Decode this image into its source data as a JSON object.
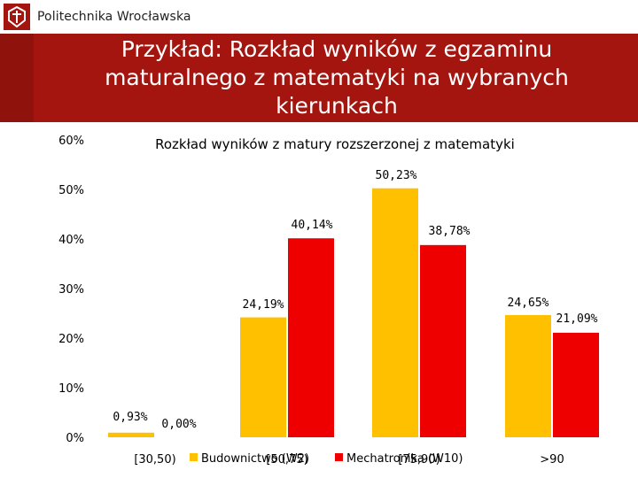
{
  "header": {
    "brand": "Politechnika Wrocławska",
    "slide_title_lines": [
      "Przykład: Rozkład wyników z egzaminu",
      "maturalnego z matematyki na wybranych",
      "kierunkach"
    ]
  },
  "colors": {
    "banner": "#a3150e",
    "series_1": "#ffc000",
    "series_2": "#ee0000"
  },
  "chart_data": {
    "type": "bar",
    "title": "Rozkład wyników z matury rozszerzonej z matematyki",
    "categories": [
      "[30,50)",
      "[50,75)",
      "[75,90)",
      ">90"
    ],
    "series": [
      {
        "name": "Budownictwo (W2)",
        "values": [
          0.93,
          24.19,
          50.23,
          24.65
        ],
        "labels": [
          "0,93%",
          "24,19%",
          "50,23%",
          "24,65%"
        ]
      },
      {
        "name": "Mechatronika (W10)",
        "values": [
          0.0,
          40.14,
          38.78,
          21.09
        ],
        "labels": [
          "0,00%",
          "40,14%",
          "38,78%",
          "21,09%"
        ]
      }
    ],
    "yticks": [
      "0%",
      "10%",
      "20%",
      "30%",
      "40%",
      "50%",
      "60%"
    ],
    "ylim": [
      0,
      60
    ],
    "grid": false,
    "legend": "bottom"
  }
}
